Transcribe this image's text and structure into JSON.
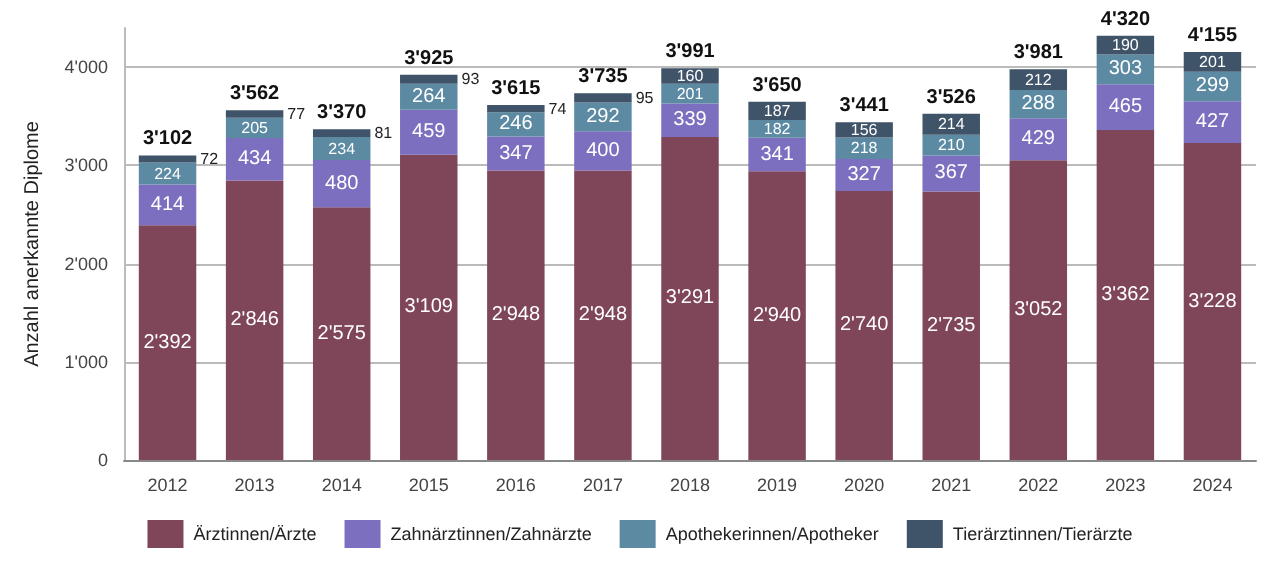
{
  "chart_data": {
    "type": "bar",
    "stacked": true,
    "ylabel": "Anzahl anerkannte Diplome",
    "categories": [
      "2012",
      "2013",
      "2014",
      "2015",
      "2016",
      "2017",
      "2018",
      "2019",
      "2020",
      "2021",
      "2022",
      "2023",
      "2024"
    ],
    "series": [
      {
        "name": "Ärztinnen/Ärzte",
        "color": "#7f4558",
        "values": [
          2392,
          2846,
          2575,
          3109,
          2948,
          2948,
          3291,
          2940,
          2740,
          2735,
          3052,
          3362,
          3228
        ],
        "value_labels": [
          "2'392",
          "2'846",
          "2'575",
          "3'109",
          "2'948",
          "2'948",
          "3'291",
          "2'940",
          "2'740",
          "2'735",
          "3'052",
          "3'362",
          "3'228"
        ]
      },
      {
        "name": "Zahnärztinnen/Zahnärzte",
        "color": "#7c6fbf",
        "values": [
          414,
          434,
          480,
          459,
          347,
          400,
          339,
          341,
          327,
          367,
          429,
          465,
          427
        ],
        "value_labels": [
          "414",
          "434",
          "480",
          "459",
          "347",
          "400",
          "339",
          "341",
          "327",
          "367",
          "429",
          "465",
          "427"
        ]
      },
      {
        "name": "Apothekerinnen/Apotheker",
        "color": "#5b8aa2",
        "values": [
          224,
          205,
          234,
          264,
          246,
          292,
          201,
          182,
          218,
          210,
          288,
          303,
          299
        ],
        "value_labels": [
          "224",
          "205",
          "234",
          "264",
          "246",
          "292",
          "201",
          "182",
          "218",
          "210",
          "288",
          "303",
          "299"
        ]
      },
      {
        "name": "Tierärztinnen/Tierärzte",
        "color": "#3f5369",
        "values": [
          72,
          77,
          81,
          93,
          74,
          95,
          160,
          187,
          156,
          214,
          212,
          190,
          201
        ],
        "value_labels": [
          "72",
          "77",
          "81",
          "93",
          "74",
          "95",
          "160",
          "187",
          "156",
          "214",
          "212",
          "190",
          "201"
        ]
      }
    ],
    "totals": [
      "3'102",
      "3'562",
      "3'370",
      "3'925",
      "3'615",
      "3'735",
      "3'991",
      "3'650",
      "3'441",
      "3'526",
      "3'981",
      "4'320",
      "4'155"
    ],
    "ylim": [
      0,
      4400
    ],
    "yticks": [
      {
        "value": 0,
        "label": "0"
      },
      {
        "value": 1000,
        "label": "1'000"
      },
      {
        "value": 2000,
        "label": "2'000"
      },
      {
        "value": 3000,
        "label": "3'000"
      },
      {
        "value": 4000,
        "label": "4'000"
      }
    ],
    "grid": "y",
    "legend": "bottom"
  }
}
